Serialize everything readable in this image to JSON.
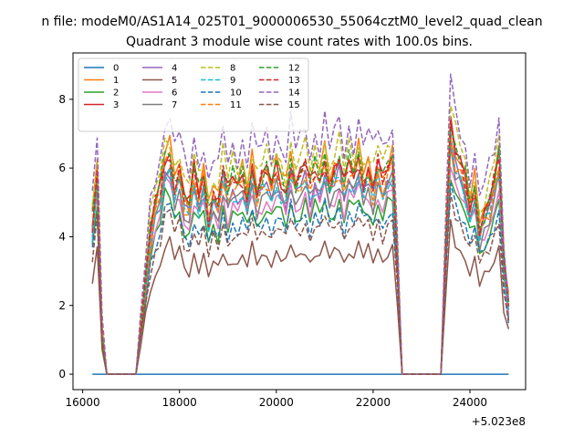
{
  "chart_data": {
    "type": "line",
    "suptitle": "n file: modeM0/AS1A14_025T01_9000006530_55064cztM0_level2_quad_clean",
    "title": "Quadrant 3 module wise count rates with 100.0s bins.",
    "xlabel": "",
    "ylabel": "",
    "x_offset_label": "+5.023e8",
    "xlim": [
      15800,
      25150
    ],
    "ylim": [
      -0.45,
      9.35
    ],
    "xticks": [
      16000,
      18000,
      20000,
      22000,
      24000
    ],
    "yticks": [
      0,
      2,
      4,
      6,
      8
    ],
    "grid": false,
    "legend": {
      "placement": "top-left",
      "columns": 4
    },
    "x": [
      16200,
      16300,
      16400,
      16500,
      16600,
      16700,
      16800,
      16900,
      17000,
      17100,
      17200,
      17300,
      17400,
      17500,
      17600,
      17700,
      17800,
      17900,
      18000,
      18100,
      18200,
      18300,
      18400,
      18500,
      18600,
      18700,
      18800,
      18900,
      19000,
      19100,
      19200,
      19300,
      19400,
      19500,
      19600,
      19700,
      19800,
      19900,
      20000,
      20100,
      20200,
      20300,
      20400,
      20500,
      20600,
      20700,
      20800,
      20900,
      21000,
      21100,
      21200,
      21300,
      21400,
      21500,
      21600,
      21700,
      21800,
      21900,
      22000,
      22100,
      22200,
      22300,
      22400,
      22500,
      22600,
      22700,
      22800,
      22900,
      23000,
      23100,
      23200,
      23300,
      23400,
      23500,
      23600,
      23700,
      23800,
      23900,
      24000,
      24100,
      24200,
      24300,
      24400,
      24500,
      24600,
      24700,
      24800
    ],
    "series": [
      {
        "name": "0",
        "color": "#1f77b4",
        "dash": "solid",
        "scale": 0.0
      },
      {
        "name": "1",
        "color": "#ff7f0e",
        "dash": "solid",
        "scale": 1.1
      },
      {
        "name": "2",
        "color": "#2ca02c",
        "dash": "solid",
        "scale": 0.87
      },
      {
        "name": "3",
        "color": "#d62728",
        "dash": "solid",
        "scale": 1.07
      },
      {
        "name": "4",
        "color": "#9467bd",
        "dash": "solid",
        "scale": 1.0
      },
      {
        "name": "5",
        "color": "#8c564b",
        "dash": "solid",
        "scale": 0.64
      },
      {
        "name": "6",
        "color": "#e377c2",
        "dash": "solid",
        "scale": 0.93
      },
      {
        "name": "7",
        "color": "#7f7f7f",
        "dash": "solid",
        "scale": 0.97
      },
      {
        "name": "8",
        "color": "#bcbd22",
        "dash": "dashed",
        "scale": 1.16
      },
      {
        "name": "9",
        "color": "#17becf",
        "dash": "dashed",
        "scale": 0.99
      },
      {
        "name": "10",
        "color": "#1f77b4",
        "dash": "dashed",
        "scale": 0.83
      },
      {
        "name": "11",
        "color": "#ff7f0e",
        "dash": "dashed",
        "scale": 1.03
      },
      {
        "name": "12",
        "color": "#2ca02c",
        "dash": "dashed",
        "scale": 1.08
      },
      {
        "name": "13",
        "color": "#d62728",
        "dash": "dashed",
        "scale": 1.06
      },
      {
        "name": "14",
        "color": "#9467bd",
        "dash": "dashed",
        "scale": 1.26
      },
      {
        "name": "15",
        "color": "#8c564b",
        "dash": "dashed",
        "scale": 0.78
      }
    ],
    "base_profile": [
      4.2,
      5.6,
      1.1,
      0.0,
      0.0,
      0.0,
      0.0,
      0.0,
      0.0,
      0.0,
      1.3,
      2.6,
      3.9,
      4.6,
      5.0,
      5.9,
      6.0,
      5.2,
      5.6,
      4.8,
      4.6,
      5.5,
      4.9,
      5.4,
      4.4,
      5.0,
      4.7,
      5.6,
      4.9,
      5.3,
      5.1,
      5.4,
      4.9,
      5.7,
      5.0,
      5.3,
      5.5,
      5.1,
      5.6,
      5.3,
      5.0,
      5.8,
      5.2,
      5.4,
      5.7,
      5.1,
      5.6,
      5.3,
      5.9,
      5.2,
      5.5,
      5.8,
      5.1,
      5.7,
      5.4,
      5.9,
      5.3,
      5.6,
      5.1,
      5.7,
      5.2,
      5.6,
      5.8,
      3.3,
      0.0,
      0.0,
      0.0,
      0.0,
      0.0,
      0.0,
      0.0,
      0.0,
      0.0,
      3.6,
      6.8,
      6.0,
      5.7,
      5.3,
      4.6,
      5.1,
      4.0,
      4.4,
      4.7,
      5.2,
      5.9,
      3.1,
      1.9
    ],
    "jitter_amplitude": 0.35
  }
}
